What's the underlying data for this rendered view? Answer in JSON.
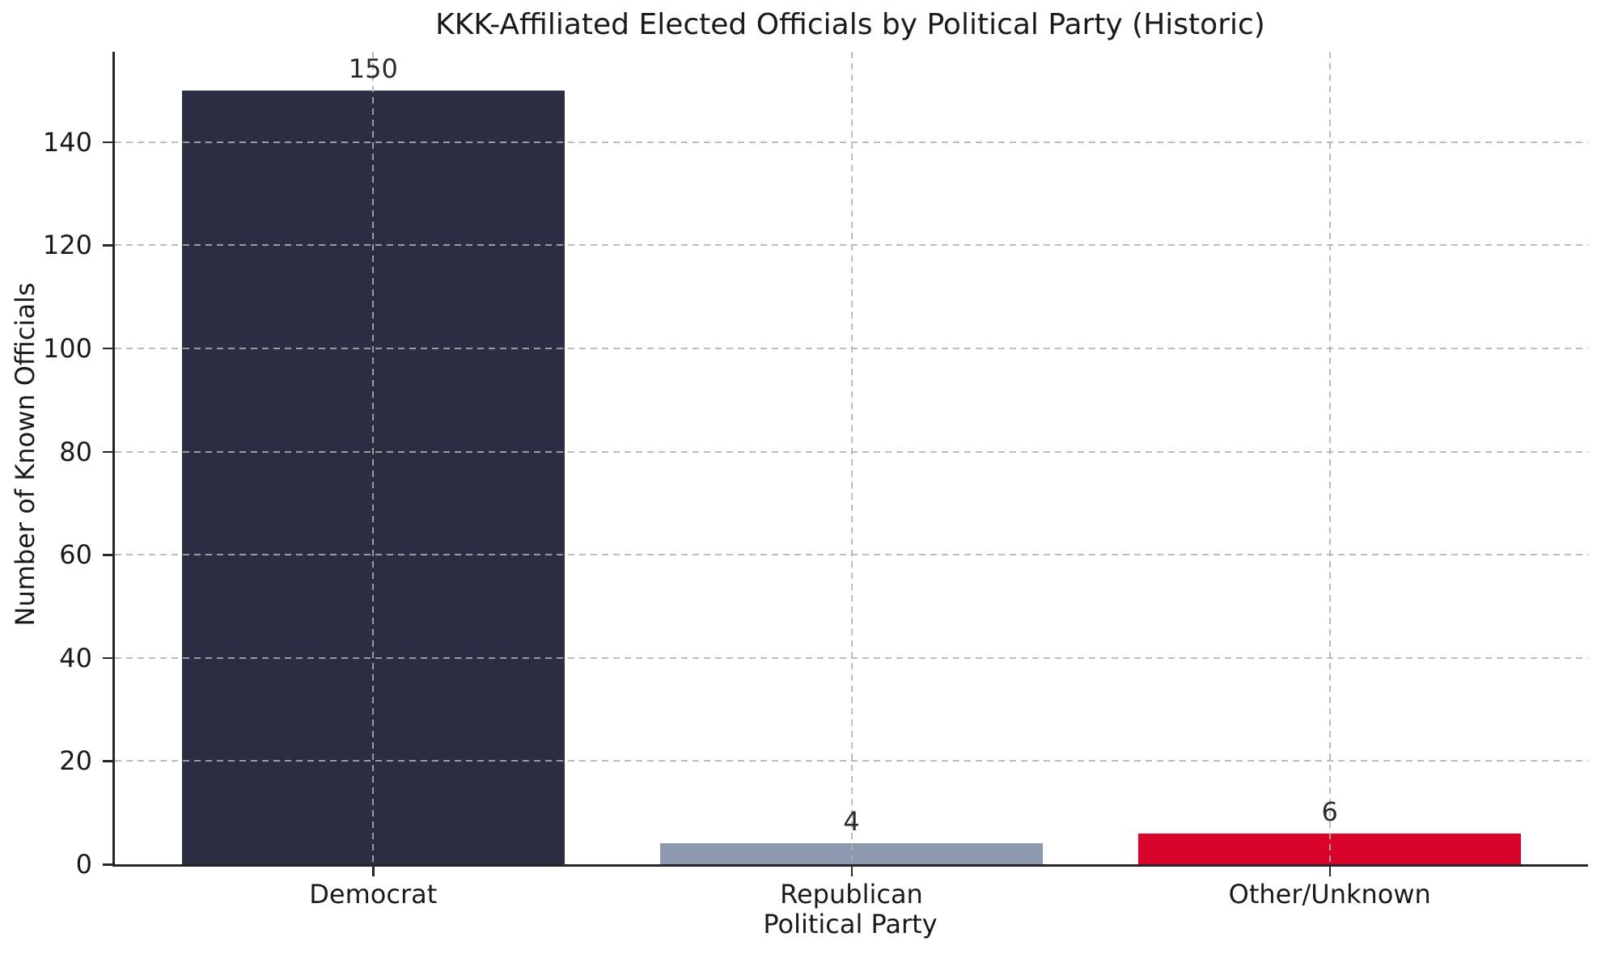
{
  "chart_data": {
    "type": "bar",
    "title": "KKK-Affiliated Elected Officials by Political Party (Historic)",
    "categories": [
      "Democrat",
      "Republican",
      "Other/Unknown"
    ],
    "values": [
      150,
      4,
      6
    ],
    "bar_labels": [
      "150",
      "4",
      "6"
    ],
    "bar_colors": [
      "#2B2D42",
      "#8D99AE",
      "#D90429"
    ],
    "xlabel": "Political Party",
    "ylabel": "Number of Known Officials",
    "ylim": [
      0,
      157.5
    ],
    "yticks": [
      0,
      20,
      40,
      60,
      80,
      100,
      120,
      140
    ],
    "bar_width_fraction": 0.8,
    "x_margin_fraction": 0.54,
    "grid": {
      "horizontal": true,
      "vertical": true,
      "style": "dashed",
      "color": "#b0b0b0"
    },
    "legend_position": "none",
    "colors": {
      "background": "#ffffff",
      "spine": "#262626",
      "text": "#1a1a1a"
    }
  }
}
